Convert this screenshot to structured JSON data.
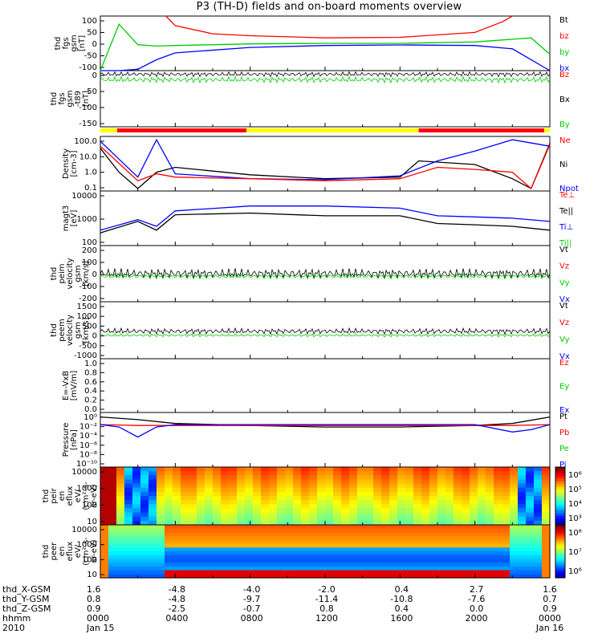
{
  "title": "P3 (TH-D) fields and on-board moments overview",
  "colors": {
    "black": "#000000",
    "red": "#ff0000",
    "green": "#00cc00",
    "blue": "#0000ff",
    "yellow": "#ffff00"
  },
  "panels": [
    {
      "id": "fgs",
      "ylabel": [
        "thd",
        "fgs",
        "gsm",
        "[nT]"
      ],
      "ticks": [
        "100",
        "50",
        "0",
        "-50",
        "-100"
      ],
      "legend": [
        "Bt",
        "bz",
        "by",
        "bx"
      ],
      "legend_colors": [
        "black",
        "red",
        "green",
        "blue"
      ]
    },
    {
      "id": "fgs_t89",
      "ylabel": [
        "thd",
        "fgs",
        "gsm",
        "-t89",
        "[nT]"
      ],
      "ticks": [
        "0",
        "-50",
        "-100",
        "-150"
      ],
      "legend": [
        "Bz",
        "Bx",
        "By"
      ],
      "legend_colors": [
        "red",
        "black",
        "green"
      ]
    },
    {
      "id": "density",
      "ylabel": [
        "Density",
        "[cm-3]"
      ],
      "ticks": [
        "100.0",
        "10.0",
        "1.0",
        "0.1"
      ],
      "legend": [
        "Ne",
        "Ni",
        "Npot"
      ],
      "legend_colors": [
        "red",
        "black",
        "blue"
      ]
    },
    {
      "id": "temperature",
      "ylabel": [
        "magt3",
        "[eV]"
      ],
      "ticks": [
        "10000",
        "1000",
        "100"
      ],
      "legend": [
        "Te⊥",
        "Te||",
        "Ti⊥",
        "Ti||"
      ],
      "legend_colors": [
        "red",
        "black",
        "blue",
        "green"
      ]
    },
    {
      "id": "peim_velocity",
      "ylabel": [
        "thd",
        "peim",
        "velocity",
        "gsm",
        "[km/s]"
      ],
      "ticks": [
        "200",
        "100",
        "0",
        "-100",
        "-200"
      ],
      "legend": [
        "Vt",
        "Vz",
        "Vy",
        "Vx"
      ],
      "legend_colors": [
        "black",
        "red",
        "green",
        "blue"
      ]
    },
    {
      "id": "peem_velocity",
      "ylabel": [
        "thd",
        "peem",
        "velocity",
        "gsm",
        "[km/s]"
      ],
      "ticks": [
        "1500",
        "1000",
        "500",
        "0",
        "-500",
        "-1000"
      ],
      "legend": [
        "Vt",
        "Vz",
        "Vy",
        "Vx"
      ],
      "legend_colors": [
        "black",
        "red",
        "green",
        "blue"
      ]
    },
    {
      "id": "efield",
      "ylabel": [
        "E=-VxB",
        "[mV/m]"
      ],
      "ticks": [
        "1.0",
        "0.8",
        "0.6",
        "0.4",
        "0.2",
        "0.0"
      ],
      "legend": [
        "Ez",
        "Ey",
        "Ex"
      ],
      "legend_colors": [
        "red",
        "green",
        "blue"
      ]
    },
    {
      "id": "pressure",
      "ylabel": [
        "Pressure",
        "[nPa]"
      ],
      "ticks": [
        "10⁰",
        "10⁻²",
        "10⁻⁴",
        "10⁻⁶",
        "10⁻⁸",
        "10⁻¹⁰"
      ],
      "legend": [
        "Pt",
        "Pb",
        "Pe",
        "Pi"
      ],
      "legend_colors": [
        "black",
        "red",
        "green",
        "blue"
      ]
    },
    {
      "id": "peir_eflux",
      "ylabel": [
        "thd",
        "peir",
        "en",
        "eflux",
        "eV/",
        "(cm²-s-",
        "sr-eV)"
      ],
      "ticks": [
        "10000",
        "1000",
        "100",
        "10"
      ],
      "colorbar_ticks": [
        "10⁶",
        "10⁵",
        "10⁴",
        "10³"
      ]
    },
    {
      "id": "peer_eflux",
      "ylabel": [
        "thd",
        "peer",
        "en",
        "eflux",
        "eV/",
        "(cm²-s-",
        "sr-eV)"
      ],
      "ticks": [
        "10000",
        "1000",
        "100",
        "10"
      ],
      "colorbar_ticks": [
        "10⁸",
        "10⁷",
        "10⁶"
      ]
    }
  ],
  "mode_bar_colors": [
    "yellow",
    "red",
    "yellow",
    "red",
    "yellow"
  ],
  "x_axis": {
    "row_labels": [
      "thd_X-GSM",
      "thd_Y-GSM",
      "thd_Z-GSM",
      "hhmm",
      "2010"
    ],
    "columns": [
      {
        "x": "1.6",
        "y": "0.8",
        "z": "0.9",
        "time": "0000",
        "date": "Jan 15"
      },
      {
        "x": "-4.8",
        "y": "-4.8",
        "z": "-2.5",
        "time": "0400",
        "date": ""
      },
      {
        "x": "-4.0",
        "y": "-9.7",
        "z": "-0.7",
        "time": "0800",
        "date": ""
      },
      {
        "x": "-2.0",
        "y": "-11.4",
        "z": "0.8",
        "time": "1200",
        "date": ""
      },
      {
        "x": "0.4",
        "y": "-10.8",
        "z": "0.4",
        "time": "1600",
        "date": ""
      },
      {
        "x": "2.7",
        "y": "-7.6",
        "z": "0.0",
        "time": "2000",
        "date": ""
      },
      {
        "x": "1.6",
        "y": "0.7",
        "z": "0.9",
        "time": "0000",
        "date": "Jan 16"
      }
    ]
  },
  "chart_data": {
    "type": "line",
    "title": "P3 (TH-D) fields and on-board moments overview",
    "x_unit": "hours from 2010-01-15 00:00 UT",
    "xlim": [
      0,
      24
    ],
    "series": [
      {
        "panel": "fgs",
        "name": "bx",
        "x": [
          0,
          1,
          2,
          3,
          4,
          8,
          12,
          16,
          20,
          22,
          23,
          24
        ],
        "values": [
          -100,
          -100,
          -95,
          -60,
          -35,
          -15,
          -8,
          -6,
          -8,
          -20,
          -60,
          -100
        ]
      },
      {
        "panel": "fgs",
        "name": "by",
        "x": [
          0,
          1,
          2,
          3,
          4,
          8,
          12,
          16,
          20,
          22,
          23,
          24
        ],
        "values": [
          -100,
          70,
          -5,
          -10,
          -8,
          -2,
          0,
          0,
          5,
          15,
          20,
          -40
        ]
      },
      {
        "panel": "fgs",
        "name": "bz",
        "x": [
          3.5,
          4,
          6,
          8,
          12,
          16,
          20,
          21.5,
          22
        ],
        "values": [
          100,
          65,
          35,
          28,
          20,
          22,
          40,
          80,
          100
        ]
      },
      {
        "panel": "density",
        "name": "Ni",
        "x": [
          0,
          1,
          2,
          3,
          4,
          8,
          12,
          16,
          17,
          20,
          22,
          23,
          24
        ],
        "values": [
          30,
          1,
          0.1,
          1,
          2,
          0.7,
          0.4,
          0.5,
          5,
          3,
          0.4,
          0.1,
          60
        ]
      },
      {
        "panel": "density",
        "name": "Npot",
        "x": [
          0,
          2,
          3,
          4,
          8,
          12,
          16,
          18,
          20,
          22,
          24
        ],
        "values": [
          80,
          0.5,
          100,
          0.8,
          0.4,
          0.35,
          0.6,
          5,
          20,
          100,
          40
        ]
      },
      {
        "panel": "density",
        "name": "Ne",
        "x": [
          0,
          2,
          3,
          4,
          8,
          12,
          16,
          18,
          20,
          22,
          23,
          24
        ],
        "values": [
          40,
          0.3,
          0.8,
          0.5,
          0.4,
          0.3,
          0.4,
          2,
          1.5,
          1,
          0.1,
          50
        ]
      },
      {
        "panel": "temperature",
        "name": "Ti⊥",
        "x": [
          0,
          2,
          3,
          4,
          8,
          12,
          16,
          18,
          20,
          22,
          24
        ],
        "values": [
          200,
          600,
          300,
          1500,
          2500,
          2500,
          2000,
          900,
          800,
          700,
          500
        ]
      },
      {
        "panel": "temperature",
        "name": "Te||",
        "x": [
          0,
          2,
          3,
          4,
          8,
          12,
          16,
          18,
          20,
          22,
          24
        ],
        "values": [
          150,
          500,
          200,
          1000,
          1200,
          900,
          900,
          400,
          350,
          300,
          200
        ]
      },
      {
        "panel": "pressure",
        "name": "Pt",
        "x": [
          0,
          2,
          4,
          8,
          12,
          16,
          20,
          22,
          24
        ],
        "values": [
          1,
          0.3,
          0.05,
          0.02,
          0.01,
          0.01,
          0.02,
          0.05,
          1
        ]
      },
      {
        "panel": "pressure",
        "name": "Pb",
        "x": [
          0,
          2,
          4,
          8,
          12,
          16,
          20,
          22,
          24
        ],
        "values": [
          0.03,
          0.02,
          0.02,
          0.02,
          0.02,
          0.02,
          0.02,
          0.02,
          0.03
        ]
      },
      {
        "panel": "pressure",
        "name": "Pi",
        "x": [
          0,
          1,
          2,
          3,
          4,
          12,
          20,
          22,
          23,
          24
        ],
        "values": [
          0.03,
          0.01,
          0.0001,
          0.01,
          0.03,
          0.03,
          0.03,
          0.001,
          0.003,
          0.03
        ]
      }
    ]
  }
}
